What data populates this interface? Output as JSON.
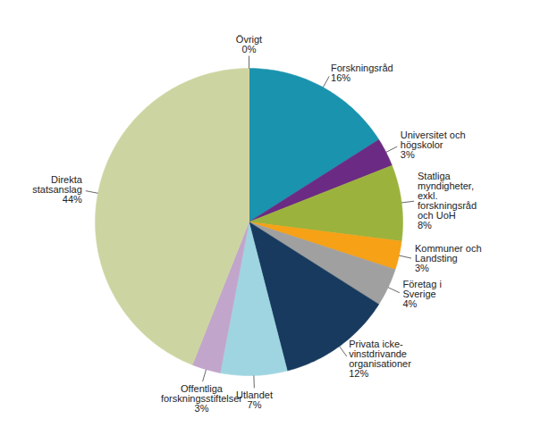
{
  "chart_data": {
    "type": "pie",
    "categories": [
      "Forskningsråd",
      "Universitet och högskolor",
      "Statliga myndigheter, exkl. forskningsråd och UoH",
      "Kommuner och Landsting",
      "Företag i Sverige",
      "Privata icke-vinstdrivande organisationer",
      "Utlandet",
      "Offentliga forskningsstiftelser",
      "Direkta statsanslag",
      "Övrigt"
    ],
    "values": [
      16,
      3,
      8,
      3,
      4,
      12,
      7,
      3,
      44,
      0
    ],
    "value_labels": [
      "16%",
      "3%",
      "8%",
      "3%",
      "4%",
      "12%",
      "7%",
      "3%",
      "44%",
      "0%"
    ],
    "colors": [
      "#1a93ae",
      "#6b2a83",
      "#9bb33c",
      "#f6a116",
      "#a0a0a0",
      "#173a5e",
      "#9fd5e1",
      "#c2a5cb",
      "#ccd5a1",
      "#f4d087"
    ],
    "data_labels": true
  }
}
